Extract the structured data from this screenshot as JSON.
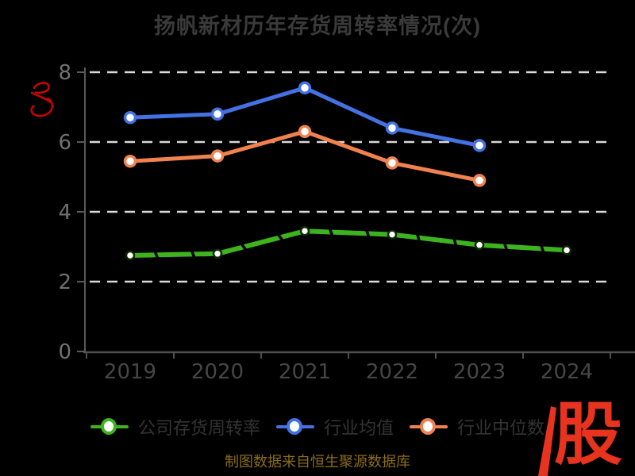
{
  "chart_data": {
    "type": "line",
    "title": "扬帆新材历年存货周转率情况(次)",
    "categories": [
      "2019",
      "2020",
      "2021",
      "2022",
      "2023",
      "2024"
    ],
    "series": [
      {
        "name": "公司存货周转率",
        "color": "#3db31e",
        "line_style": "sketchy-with-black-slashes",
        "marker": "white-circle-dark-ring",
        "marker_ring_color": "#0d2b00",
        "values": [
          2.75,
          2.8,
          3.45,
          3.35,
          3.05,
          2.9
        ]
      },
      {
        "name": "行业均值",
        "color": "#4472e4",
        "line_style": "solid",
        "marker": "white-circle-colored-ring",
        "values": [
          6.7,
          6.8,
          7.55,
          6.4,
          5.9,
          null
        ]
      },
      {
        "name": "行业中位数",
        "color": "#f1824f",
        "line_style": "solid",
        "marker": "white-circle-colored-ring",
        "values": [
          5.45,
          5.6,
          6.3,
          5.4,
          4.9,
          null
        ]
      }
    ],
    "ylim": [
      0,
      8
    ],
    "yticks": [
      0,
      2,
      4,
      6,
      8
    ],
    "xlabel": "",
    "ylabel": "",
    "grid": "horizontal dashed white lines at y=2,4,6,8",
    "grid_color": "#d9d9d9",
    "axis_color": "#4f4f4f",
    "ytick_label_color": "#707070",
    "xtick_label_color": "#464646",
    "legend_position": "bottom"
  },
  "watermark": {
    "icon": "red-scribble-signature",
    "color": "#d40000"
  },
  "footer": {
    "caption": "制图数据来自恒生聚源数据库"
  },
  "logo": {
    "text": "股",
    "color": "#e8331e",
    "icon": "red-diagonal-stripe"
  }
}
